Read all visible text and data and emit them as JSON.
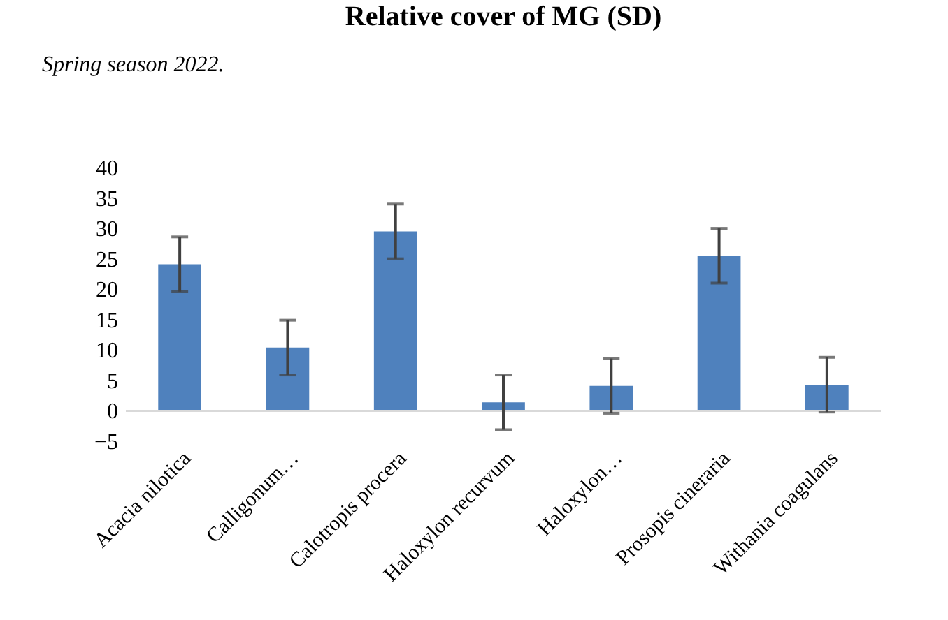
{
  "chart_data": {
    "type": "bar",
    "title": "Relative cover of MG (SD)",
    "annotations": [
      "Spring season 2022."
    ],
    "categories": [
      "Acacia nilotica",
      "Calligonum…",
      "Calotropis procera",
      "Haloxylon recurvum",
      "Haloxylon…",
      "Prosopis cineraria",
      "Withania coagulans"
    ],
    "values": [
      24.1,
      10.4,
      29.5,
      1.4,
      4.1,
      25.5,
      4.3
    ],
    "errors": [
      4.5,
      4.5,
      4.5,
      4.5,
      4.5,
      4.5,
      4.5
    ],
    "color": "#4f81bd",
    "ylim": [
      -5,
      40
    ],
    "yticks": [
      -5,
      0,
      5,
      10,
      15,
      20,
      25,
      30,
      35,
      40
    ],
    "grid": false
  }
}
